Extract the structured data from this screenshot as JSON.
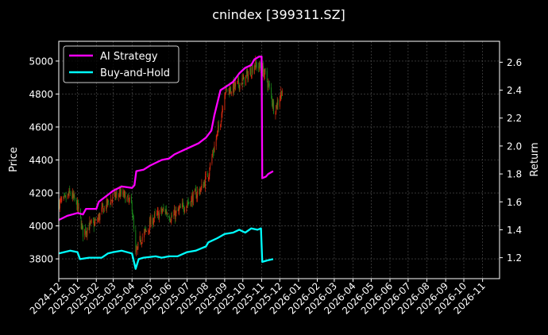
{
  "chart_data": {
    "type": "line",
    "title": "cnindex [399311.SZ]",
    "ylabel_left": "Price",
    "ylabel_right": "Return",
    "x_ticks": [
      "2024-12",
      "2025-01",
      "2025-02",
      "2025-03",
      "2025-04",
      "2025-05",
      "2025-06",
      "2025-07",
      "2025-08",
      "2025-09",
      "2025-10",
      "2025-11",
      "2025-12",
      "2026-01",
      "2026-02",
      "2026-03",
      "2026-04",
      "2026-05",
      "2026-06",
      "2026-07",
      "2026-08",
      "2026-09",
      "2026-10",
      "2026-11"
    ],
    "xlim": [
      "2024-12-01",
      "2026-11-29"
    ],
    "y_left": {
      "lim": [
        3680,
        5120
      ],
      "ticks": [
        3800,
        4000,
        4200,
        4400,
        4600,
        4800,
        5000
      ]
    },
    "y_right": {
      "lim": [
        1.05,
        2.75
      ],
      "ticks": [
        "1.2",
        "1.4",
        "1.6",
        "1.8",
        "2.0",
        "2.2",
        "2.4",
        "2.6"
      ]
    },
    "grid": true,
    "legend": {
      "position": "top-left",
      "entries": [
        "AI Strategy",
        "Buy-and-Hold"
      ]
    },
    "colors": {
      "ai": "#ff00ff",
      "bh": "#00ffff",
      "up": "#d42a10",
      "down": "#1a8a1a",
      "grid": "#555555"
    },
    "price_close": [
      [
        "2024-12-01",
        4140
      ],
      [
        "2024-12-10",
        4150
      ],
      [
        "2024-12-20",
        4200
      ],
      [
        "2025-01-01",
        4120
      ],
      [
        "2025-01-10",
        3960
      ],
      [
        "2025-01-20",
        4000
      ],
      [
        "2025-02-01",
        4020
      ],
      [
        "2025-02-10",
        4090
      ],
      [
        "2025-02-20",
        4140
      ],
      [
        "2025-03-01",
        4170
      ],
      [
        "2025-03-10",
        4200
      ],
      [
        "2025-03-20",
        4180
      ],
      [
        "2025-04-01",
        4120
      ],
      [
        "2025-04-07",
        3820
      ],
      [
        "2025-04-15",
        3920
      ],
      [
        "2025-04-25",
        3970
      ],
      [
        "2025-05-05",
        4040
      ],
      [
        "2025-05-15",
        4070
      ],
      [
        "2025-05-25",
        4100
      ],
      [
        "2025-06-05",
        4050
      ],
      [
        "2025-06-15",
        4080
      ],
      [
        "2025-06-25",
        4120
      ],
      [
        "2025-07-05",
        4150
      ],
      [
        "2025-07-15",
        4190
      ],
      [
        "2025-07-25",
        4230
      ],
      [
        "2025-08-05",
        4320
      ],
      [
        "2025-08-15",
        4480
      ],
      [
        "2025-08-25",
        4640
      ],
      [
        "2025-09-01",
        4820
      ],
      [
        "2025-09-10",
        4830
      ],
      [
        "2025-09-20",
        4850
      ],
      [
        "2025-10-01",
        4880
      ],
      [
        "2025-10-10",
        4920
      ],
      [
        "2025-10-20",
        4980
      ],
      [
        "2025-10-30",
        4960
      ],
      [
        "2025-11-05",
        4930
      ],
      [
        "2025-11-10",
        4880
      ],
      [
        "2025-11-15",
        4820
      ],
      [
        "2025-11-22",
        4700
      ],
      [
        "2025-11-30",
        4770
      ],
      [
        "2025-12-05",
        4830
      ]
    ],
    "series": [
      {
        "name": "AI Strategy",
        "axis": "right",
        "points": [
          [
            "2024-12-01",
            1.47
          ],
          [
            "2024-12-15",
            1.5
          ],
          [
            "2025-01-01",
            1.52
          ],
          [
            "2025-01-10",
            1.51
          ],
          [
            "2025-01-15",
            1.55
          ],
          [
            "2025-02-01",
            1.55
          ],
          [
            "2025-02-05",
            1.6
          ],
          [
            "2025-02-20",
            1.65
          ],
          [
            "2025-03-01",
            1.68
          ],
          [
            "2025-03-15",
            1.71
          ],
          [
            "2025-04-01",
            1.7
          ],
          [
            "2025-04-05",
            1.72
          ],
          [
            "2025-04-08",
            1.82
          ],
          [
            "2025-04-20",
            1.83
          ],
          [
            "2025-05-01",
            1.86
          ],
          [
            "2025-05-20",
            1.9
          ],
          [
            "2025-06-01",
            1.91
          ],
          [
            "2025-06-10",
            1.94
          ],
          [
            "2025-06-25",
            1.97
          ],
          [
            "2025-07-10",
            2.0
          ],
          [
            "2025-07-20",
            2.02
          ],
          [
            "2025-08-01",
            2.06
          ],
          [
            "2025-08-10",
            2.11
          ],
          [
            "2025-08-15",
            2.22
          ],
          [
            "2025-08-25",
            2.4
          ],
          [
            "2025-09-05",
            2.43
          ],
          [
            "2025-09-15",
            2.46
          ],
          [
            "2025-09-25",
            2.52
          ],
          [
            "2025-10-05",
            2.56
          ],
          [
            "2025-10-15",
            2.58
          ],
          [
            "2025-10-20",
            2.62
          ],
          [
            "2025-10-28",
            2.64
          ],
          [
            "2025-11-01",
            2.64
          ],
          [
            "2025-11-02",
            1.77
          ],
          [
            "2025-11-08",
            1.78
          ],
          [
            "2025-11-12",
            1.8
          ],
          [
            "2025-11-20",
            1.82
          ]
        ]
      },
      {
        "name": "Buy-and-Hold",
        "axis": "right",
        "points": [
          [
            "2024-12-01",
            1.23
          ],
          [
            "2024-12-20",
            1.25
          ],
          [
            "2025-01-01",
            1.24
          ],
          [
            "2025-01-05",
            1.19
          ],
          [
            "2025-01-20",
            1.2
          ],
          [
            "2025-02-10",
            1.2
          ],
          [
            "2025-02-20",
            1.23
          ],
          [
            "2025-03-01",
            1.24
          ],
          [
            "2025-03-15",
            1.25
          ],
          [
            "2025-04-01",
            1.23
          ],
          [
            "2025-04-07",
            1.12
          ],
          [
            "2025-04-12",
            1.19
          ],
          [
            "2025-04-20",
            1.2
          ],
          [
            "2025-05-10",
            1.21
          ],
          [
            "2025-05-20",
            1.2
          ],
          [
            "2025-06-01",
            1.21
          ],
          [
            "2025-06-15",
            1.21
          ],
          [
            "2025-07-01",
            1.24
          ],
          [
            "2025-07-15",
            1.25
          ],
          [
            "2025-08-01",
            1.28
          ],
          [
            "2025-08-05",
            1.31
          ],
          [
            "2025-08-20",
            1.34
          ],
          [
            "2025-09-01",
            1.37
          ],
          [
            "2025-09-15",
            1.38
          ],
          [
            "2025-09-25",
            1.4
          ],
          [
            "2025-10-05",
            1.38
          ],
          [
            "2025-10-15",
            1.41
          ],
          [
            "2025-10-25",
            1.4
          ],
          [
            "2025-10-31",
            1.41
          ],
          [
            "2025-11-02",
            1.17
          ],
          [
            "2025-11-10",
            1.18
          ],
          [
            "2025-11-20",
            1.19
          ]
        ]
      }
    ]
  }
}
